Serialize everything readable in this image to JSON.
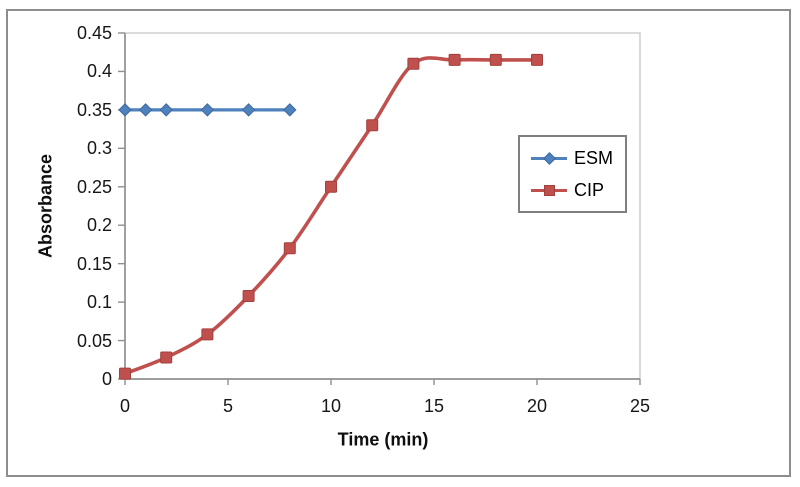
{
  "figure": {
    "background": "#ffffff",
    "border_color": "#8d8d8d",
    "axis_color": "#8f8f8f",
    "plot_border_color": "#c6c6c6",
    "tick_text_color": "#171717"
  },
  "chart_data": {
    "type": "line",
    "title": "",
    "xlabel": "Time (min)",
    "ylabel": "Absorbance",
    "xlim": [
      0,
      25
    ],
    "ylim": [
      0,
      0.45
    ],
    "x_ticks": [
      0,
      5,
      10,
      15,
      20,
      25
    ],
    "y_ticks": [
      0,
      0.05,
      0.1,
      0.15,
      0.2,
      0.25,
      0.3,
      0.35,
      0.4,
      0.45
    ],
    "y_tick_labels": [
      "0",
      "0.05",
      "0.1",
      "0.15",
      "0.2",
      "0.25",
      "0.3",
      "0.35",
      "0.4",
      "0.45"
    ],
    "grid": false,
    "legend_position": "middle-right",
    "series": [
      {
        "name": "ESM",
        "color": "#4f81bd",
        "edge": "#3d699f",
        "marker": "diamond",
        "line_width": 3.2,
        "x": [
          0,
          1,
          2,
          4,
          6,
          8
        ],
        "y": [
          0.35,
          0.35,
          0.35,
          0.35,
          0.35,
          0.35
        ]
      },
      {
        "name": "CIP",
        "color": "#c0504d",
        "edge": "#a2403d",
        "marker": "square",
        "line_width": 3.6,
        "x": [
          0,
          2,
          4,
          6,
          8,
          10,
          12,
          14,
          16,
          18,
          20
        ],
        "y": [
          0.007,
          0.028,
          0.058,
          0.108,
          0.17,
          0.25,
          0.33,
          0.41,
          0.415,
          0.415,
          0.415
        ]
      }
    ]
  }
}
